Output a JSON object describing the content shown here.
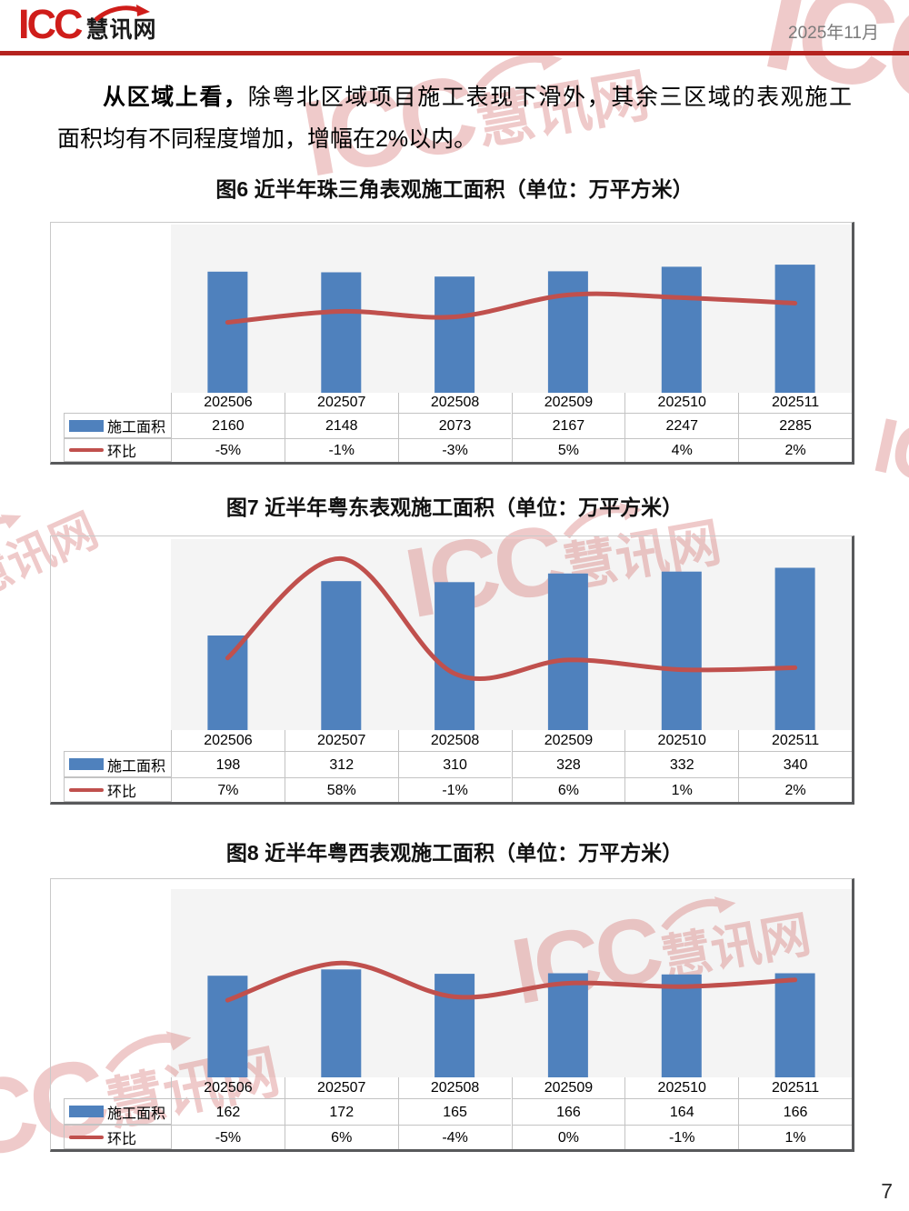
{
  "header": {
    "logo_icc": "ICC",
    "logo_cn": "慧讯网",
    "date": "2025年11月"
  },
  "paragraph": {
    "bold": "从区域上看，",
    "line1_rest": "除粤北区域项目施工表现下滑外，其余三区域的表观施工",
    "line2": "面积均有不同程度增加，增幅在2%以内。"
  },
  "watermark": {
    "icc": "ICC",
    "cn": "慧讯网"
  },
  "footer": {
    "page_number": "7"
  },
  "chart_data": [
    {
      "type": "bar+line",
      "title": "图6 近半年珠三角表观施工面积（单位：万平方米）",
      "categories": [
        "202506",
        "202507",
        "202508",
        "202509",
        "202510",
        "202511"
      ],
      "series": [
        {
          "name": "施工面积",
          "type": "bar",
          "color": "#4f81bd",
          "values": [
            2160,
            2148,
            2073,
            2167,
            2247,
            2285
          ],
          "labels": [
            "2160",
            "2148",
            "2073",
            "2167",
            "2247",
            "2285"
          ]
        },
        {
          "name": "环比",
          "type": "line",
          "color": "#c0504d",
          "values": [
            -5,
            -1,
            -3,
            5,
            4,
            2
          ],
          "labels": [
            "-5%",
            "-1%",
            "-3%",
            "5%",
            "4%",
            "2%"
          ]
        }
      ],
      "ylim": [
        0,
        3000
      ],
      "y2lim": [
        -30.7,
        30.7
      ],
      "grid": false,
      "legend_position": "table-left",
      "plot_bg": "#f4f4f4"
    },
    {
      "type": "bar+line",
      "title": "图7 近半年粤东表观施工面积（单位：万平方米）",
      "categories": [
        "202506",
        "202507",
        "202508",
        "202509",
        "202510",
        "202511"
      ],
      "series": [
        {
          "name": "施工面积",
          "type": "bar",
          "color": "#4f81bd",
          "values": [
            198,
            312,
            310,
            328,
            332,
            340
          ],
          "labels": [
            "198",
            "312",
            "310",
            "328",
            "332",
            "340"
          ]
        },
        {
          "name": "环比",
          "type": "line",
          "color": "#c0504d",
          "values": [
            7,
            58,
            -1,
            6,
            1,
            2
          ],
          "labels": [
            "7%",
            "58%",
            "-1%",
            "6%",
            "1%",
            "2%"
          ]
        }
      ],
      "ylim": [
        0,
        400
      ],
      "y2lim": [
        -30,
        68
      ],
      "grid": false,
      "legend_position": "table-left",
      "plot_bg": "#f4f4f4"
    },
    {
      "type": "bar+line",
      "title": "图8 近半年粤西表观施工面积（单位：万平方米）",
      "categories": [
        "202506",
        "202507",
        "202508",
        "202509",
        "202510",
        "202511"
      ],
      "series": [
        {
          "name": "施工面积",
          "type": "bar",
          "color": "#4f81bd",
          "values": [
            162,
            172,
            165,
            166,
            164,
            166
          ],
          "labels": [
            "162",
            "172",
            "165",
            "166",
            "164",
            "166"
          ]
        },
        {
          "name": "环比",
          "type": "line",
          "color": "#c0504d",
          "values": [
            -5,
            6,
            -4,
            0,
            -1,
            1
          ],
          "labels": [
            "-5%",
            "6%",
            "-4%",
            "0%",
            "-1%",
            "1%"
          ]
        }
      ],
      "ylim": [
        0,
        300
      ],
      "y2lim": [
        -27.8,
        27.8
      ],
      "grid": false,
      "legend_position": "table-left",
      "plot_bg": "#f4f4f4"
    }
  ]
}
